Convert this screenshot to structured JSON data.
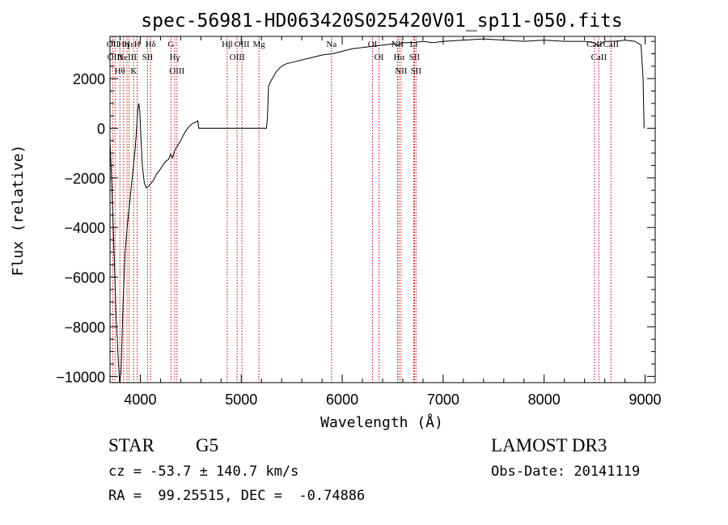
{
  "chart_data": {
    "type": "line",
    "title": "spec-56981-HD063420S025420V01_sp11-050.fits",
    "xlabel": "Wavelength (Å)",
    "ylabel": "Flux (relative)",
    "xlim": [
      3700,
      9100
    ],
    "ylim": [
      -10250,
      3700
    ],
    "xticks": [
      4000,
      5000,
      6000,
      7000,
      8000,
      9000
    ],
    "yticks": [
      -10000,
      -8000,
      -6000,
      -4000,
      -2000,
      0,
      2000
    ],
    "grid": false,
    "series": [
      {
        "points": [
          [
            3700,
            -500
          ],
          [
            3720,
            -2500
          ],
          [
            3740,
            -5000
          ],
          [
            3760,
            -7500
          ],
          [
            3780,
            -9200
          ],
          [
            3795,
            -10250
          ],
          [
            3810,
            -9800
          ],
          [
            3830,
            -7000
          ],
          [
            3850,
            -5000
          ],
          [
            3870,
            -4000
          ],
          [
            3890,
            -3200
          ],
          [
            3910,
            -2400
          ],
          [
            3930,
            -1600
          ],
          [
            3950,
            -800
          ],
          [
            3965,
            100
          ],
          [
            3975,
            750
          ],
          [
            3985,
            1000
          ],
          [
            3995,
            700
          ],
          [
            4005,
            -300
          ],
          [
            4020,
            -1500
          ],
          [
            4040,
            -2200
          ],
          [
            4060,
            -2400
          ],
          [
            4080,
            -2350
          ],
          [
            4100,
            -2250
          ],
          [
            4130,
            -2100
          ],
          [
            4160,
            -1850
          ],
          [
            4190,
            -1700
          ],
          [
            4220,
            -1500
          ],
          [
            4250,
            -1350
          ],
          [
            4280,
            -1250
          ],
          [
            4300,
            -1050
          ],
          [
            4320,
            -1200
          ],
          [
            4340,
            -900
          ],
          [
            4370,
            -700
          ],
          [
            4400,
            -500
          ],
          [
            4430,
            -250
          ],
          [
            4460,
            -50
          ],
          [
            4490,
            100
          ],
          [
            4520,
            200
          ],
          [
            4550,
            250
          ],
          [
            4570,
            300
          ],
          [
            4580,
            0
          ],
          [
            5250,
            0
          ],
          [
            5260,
            500
          ],
          [
            5270,
            1700
          ],
          [
            5300,
            1950
          ],
          [
            5350,
            2300
          ],
          [
            5400,
            2500
          ],
          [
            5450,
            2600
          ],
          [
            5500,
            2650
          ],
          [
            5550,
            2700
          ],
          [
            5600,
            2750
          ],
          [
            5700,
            2850
          ],
          [
            5800,
            2950
          ],
          [
            5900,
            3000
          ],
          [
            6000,
            3100
          ],
          [
            6100,
            3200
          ],
          [
            6200,
            3250
          ],
          [
            6300,
            3300
          ],
          [
            6400,
            3350
          ],
          [
            6500,
            3400
          ],
          [
            6560,
            3350
          ],
          [
            6600,
            3450
          ],
          [
            6700,
            3450
          ],
          [
            6800,
            3500
          ],
          [
            6900,
            3450
          ],
          [
            7000,
            3500
          ],
          [
            7200,
            3550
          ],
          [
            7400,
            3600
          ],
          [
            7600,
            3550
          ],
          [
            7800,
            3500
          ],
          [
            8000,
            3550
          ],
          [
            8200,
            3500
          ],
          [
            8400,
            3500
          ],
          [
            8500,
            3450
          ],
          [
            8540,
            3300
          ],
          [
            8560,
            3400
          ],
          [
            8600,
            3500
          ],
          [
            8700,
            3500
          ],
          [
            8800,
            3550
          ],
          [
            8900,
            3500
          ],
          [
            8960,
            3350
          ],
          [
            8980,
            2000
          ],
          [
            8990,
            0
          ]
        ]
      }
    ],
    "line_markers": [
      {
        "x": 3727,
        "label": "OII"
      },
      {
        "x": 3750,
        "label": "OIII"
      },
      {
        "x": 3798,
        "label": "Hθ"
      },
      {
        "x": 3835,
        "label": "Hη"
      },
      {
        "x": 3869,
        "label": "NeIII"
      },
      {
        "x": 3889,
        "label": "Hε"
      },
      {
        "x": 3934,
        "label": "K"
      },
      {
        "x": 3969,
        "label": "H"
      },
      {
        "x": 4072,
        "label": "SII"
      },
      {
        "x": 4102,
        "label": "Hδ"
      },
      {
        "x": 4304,
        "label": "G"
      },
      {
        "x": 4341,
        "label": "Hγ"
      },
      {
        "x": 4363,
        "label": "OIII"
      },
      {
        "x": 4861,
        "label": "Hβ"
      },
      {
        "x": 4959,
        "label": "OIII"
      },
      {
        "x": 5007,
        "label": "OIII"
      },
      {
        "x": 5175,
        "label": "Mg"
      },
      {
        "x": 5894,
        "label": "Na"
      },
      {
        "x": 6300,
        "label": "OI"
      },
      {
        "x": 6364,
        "label": "OI"
      },
      {
        "x": 6548,
        "label": "NII"
      },
      {
        "x": 6563,
        "label": "Hα"
      },
      {
        "x": 6583,
        "label": "NII"
      },
      {
        "x": 6708,
        "label": "Li"
      },
      {
        "x": 6716,
        "label": "SII"
      },
      {
        "x": 6731,
        "label": "SII"
      },
      {
        "x": 8498,
        "label": "CaII"
      },
      {
        "x": 8542,
        "label": "CaII"
      },
      {
        "x": 8662,
        "label": "CaII"
      }
    ],
    "marker_color": "#cc0000",
    "line_color": "#000000"
  },
  "info": {
    "class": "STAR",
    "subclass": "G5",
    "survey": "LAMOST DR3",
    "cz": "cz = -53.7 ± 140.7 km/s",
    "obs_date": "Obs-Date: 20141119",
    "coords": "RA =  99.25515, DEC =  -0.74886"
  }
}
